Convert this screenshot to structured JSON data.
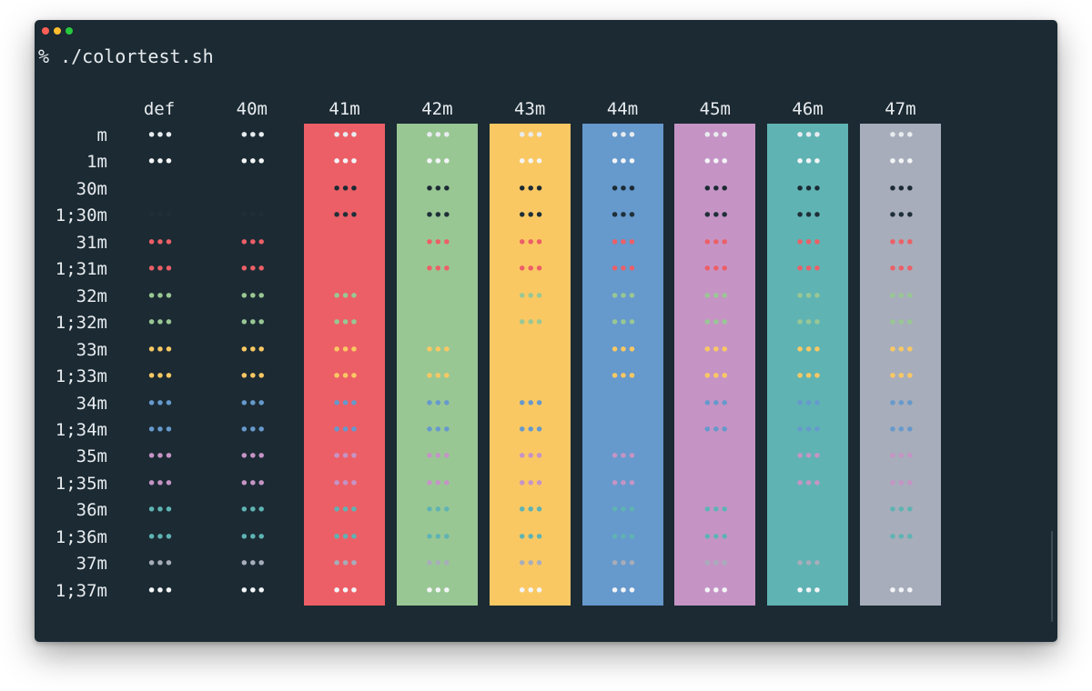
{
  "window": {
    "buttons": [
      {
        "name": "close",
        "color": "#ff5f56"
      },
      {
        "name": "minimize",
        "color": "#ffbd2e"
      },
      {
        "name": "zoom",
        "color": "#27c93f"
      }
    ]
  },
  "terminal": {
    "prompt": "% ./colortest.sh",
    "cell_glyph": "•••",
    "bg_headers": [
      "def",
      "40m",
      "41m",
      "42m",
      "43m",
      "44m",
      "45m",
      "46m",
      "47m"
    ],
    "fg_rows": [
      "m",
      "1m",
      "30m",
      "1;30m",
      "31m",
      "1;31m",
      "32m",
      "1;32m",
      "33m",
      "1;33m",
      "34m",
      "1;34m",
      "35m",
      "1;35m",
      "36m",
      "1;36m",
      "37m",
      "1;37m"
    ],
    "bg_colors": {
      "def": null,
      "40m": null,
      "41m": "#ec5f67",
      "42m": "#99c794",
      "43m": "#fac863",
      "44m": "#6699cc",
      "45m": "#c594c5",
      "46m": "#5fb3b3",
      "47m": "#a7adba"
    },
    "fg_colors": {
      "m": "#e8ecef",
      "1m": "#f3f5f7",
      "30m": "#1b2a33",
      "1;30m": "#1f2f38",
      "31m": "#ec5f67",
      "1;31m": "#ec5f67",
      "32m": "#99c794",
      "1;32m": "#99c794",
      "33m": "#fac863",
      "1;33m": "#fac863",
      "34m": "#6699cc",
      "1;34m": "#6699cc",
      "35m": "#c594c5",
      "1;35m": "#c594c5",
      "36m": "#5fb3b3",
      "1;36m": "#5fb3b3",
      "37m": "#a7adba",
      "1;37m": "#f3f5f7"
    }
  }
}
